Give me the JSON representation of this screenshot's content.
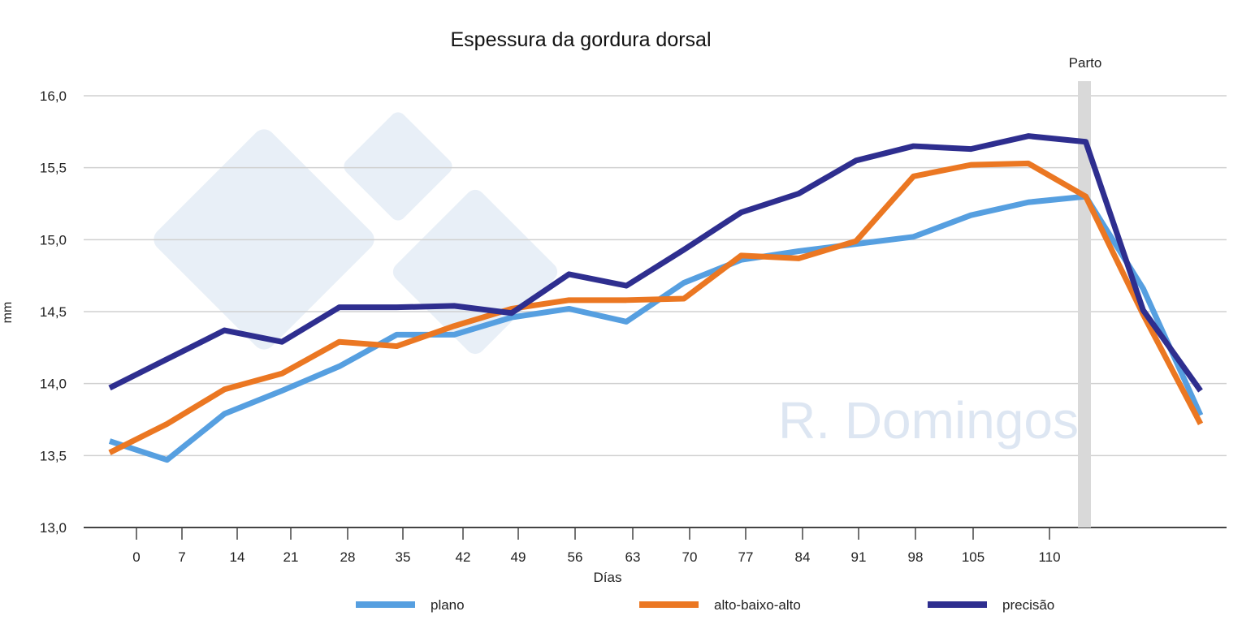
{
  "chart_data": {
    "type": "line",
    "title": "Espessura da gordura dorsal",
    "xlabel": "Días",
    "ylabel": "mm",
    "ylim": [
      13.0,
      16.0
    ],
    "yticks": [
      "13,0",
      "13,5",
      "14,0",
      "14,5",
      "15,0",
      "15,5",
      "16,0"
    ],
    "xtick_labels": [
      "0",
      "7",
      "14",
      "21",
      "28",
      "35",
      "42",
      "49",
      "56",
      "63",
      "70",
      "77",
      "84",
      "91",
      "98",
      "105",
      "110"
    ],
    "grid": true,
    "legend_position": "bottom",
    "annotation": "Parto",
    "watermark": "R. Domingos",
    "series": [
      {
        "name": "plano",
        "color": "#569FE0",
        "values": [
          13.6,
          13.47,
          13.79,
          13.95,
          14.12,
          14.34,
          14.34,
          14.46,
          14.52,
          14.43,
          14.7,
          14.86,
          14.92,
          14.97,
          15.02,
          15.17,
          15.26,
          15.3,
          14.66,
          13.78
        ]
      },
      {
        "name": "alto-baixo-alto",
        "color": "#EB7722",
        "values": [
          13.52,
          13.72,
          13.96,
          14.07,
          14.29,
          14.26,
          14.4,
          14.52,
          14.58,
          14.58,
          14.59,
          14.89,
          14.87,
          14.99,
          15.44,
          15.52,
          15.53,
          15.3,
          14.48,
          13.72
        ]
      },
      {
        "name": "precisão",
        "color": "#2E2E8F",
        "values": [
          13.97,
          14.17,
          14.37,
          14.29,
          14.53,
          14.53,
          14.54,
          14.49,
          14.76,
          14.68,
          14.93,
          15.19,
          15.32,
          15.55,
          15.65,
          15.63,
          15.72,
          15.68,
          14.51,
          13.95
        ]
      }
    ]
  }
}
